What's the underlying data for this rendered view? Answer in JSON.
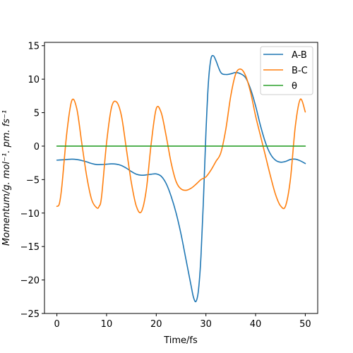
{
  "chart_data": {
    "type": "line",
    "title": "",
    "xlabel": "Time/fs",
    "ylabel": "Momentum/g. mol⁻¹. pm. fs⁻¹",
    "xlim": [
      -2.5,
      52.5
    ],
    "ylim": [
      -25,
      15.5
    ],
    "xticks": [
      0,
      10,
      20,
      30,
      40,
      50
    ],
    "yticks": [
      -25,
      -20,
      -15,
      -10,
      -5,
      0,
      5,
      10,
      15
    ],
    "grid": false,
    "legend_position": "top-right",
    "series": [
      {
        "name": "A-B",
        "color": "#1f77b4",
        "x": [
          0,
          1,
          2,
          3,
          4,
          5,
          6,
          7,
          8,
          9,
          10,
          11,
          12,
          13,
          14,
          15,
          16,
          17,
          18,
          19,
          20,
          21,
          22,
          23,
          24,
          25,
          26,
          27,
          27.5,
          28,
          28.5,
          29,
          29.5,
          30,
          30.5,
          31,
          31.5,
          32,
          33,
          34,
          35,
          36,
          37,
          38,
          39,
          40,
          41,
          42,
          43,
          44,
          45,
          46,
          47,
          48,
          49,
          50
        ],
        "y": [
          -2.1,
          -2.05,
          -2.0,
          -1.95,
          -2.0,
          -2.15,
          -2.35,
          -2.6,
          -2.75,
          -2.75,
          -2.7,
          -2.65,
          -2.7,
          -2.9,
          -3.3,
          -3.8,
          -4.2,
          -4.35,
          -4.3,
          -4.2,
          -4.15,
          -4.5,
          -5.6,
          -7.5,
          -10.0,
          -13.2,
          -17.0,
          -20.8,
          -22.6,
          -23.2,
          -21.5,
          -16.5,
          -8.0,
          2.0,
          9.5,
          13.0,
          13.5,
          12.8,
          11.0,
          10.7,
          10.8,
          11.0,
          10.8,
          10.2,
          8.5,
          6.0,
          3.0,
          0.5,
          -1.2,
          -2.1,
          -2.4,
          -2.3,
          -2.0,
          -1.95,
          -2.2,
          -2.6
        ]
      },
      {
        "name": "B-C",
        "color": "#ff7f0e",
        "x": [
          0,
          0.5,
          1,
          2,
          3,
          4,
          5,
          6,
          7,
          8,
          8.5,
          9,
          10,
          11,
          12,
          13,
          14,
          15,
          16,
          17,
          18,
          19,
          20,
          21,
          22,
          23,
          24,
          25,
          26,
          27,
          28,
          29,
          30,
          31,
          32,
          33,
          34,
          35,
          36,
          37,
          38,
          39,
          40,
          41,
          42,
          43,
          44,
          45,
          46,
          47,
          48,
          49,
          50
        ],
        "y": [
          -9.0,
          -8.6,
          -6.0,
          2.0,
          6.8,
          5.6,
          0.5,
          -4.5,
          -8.0,
          -9.2,
          -9.0,
          -7.5,
          0.5,
          5.8,
          6.6,
          4.5,
          -0.5,
          -5.5,
          -9.0,
          -9.8,
          -6.5,
          0.5,
          5.6,
          5.0,
          1.5,
          -2.5,
          -5.3,
          -6.4,
          -6.6,
          -6.3,
          -5.7,
          -5.0,
          -4.6,
          -3.6,
          -2.3,
          -1.0,
          2.5,
          7.5,
          10.8,
          11.5,
          10.5,
          8.0,
          4.5,
          1.5,
          -1.5,
          -4.5,
          -7.2,
          -8.9,
          -9.0,
          -5.0,
          3.0,
          7.0,
          5.1
        ]
      },
      {
        "name": "θ",
        "color": "#2ca02c",
        "x": [
          0,
          50
        ],
        "y": [
          0,
          0
        ]
      }
    ]
  }
}
